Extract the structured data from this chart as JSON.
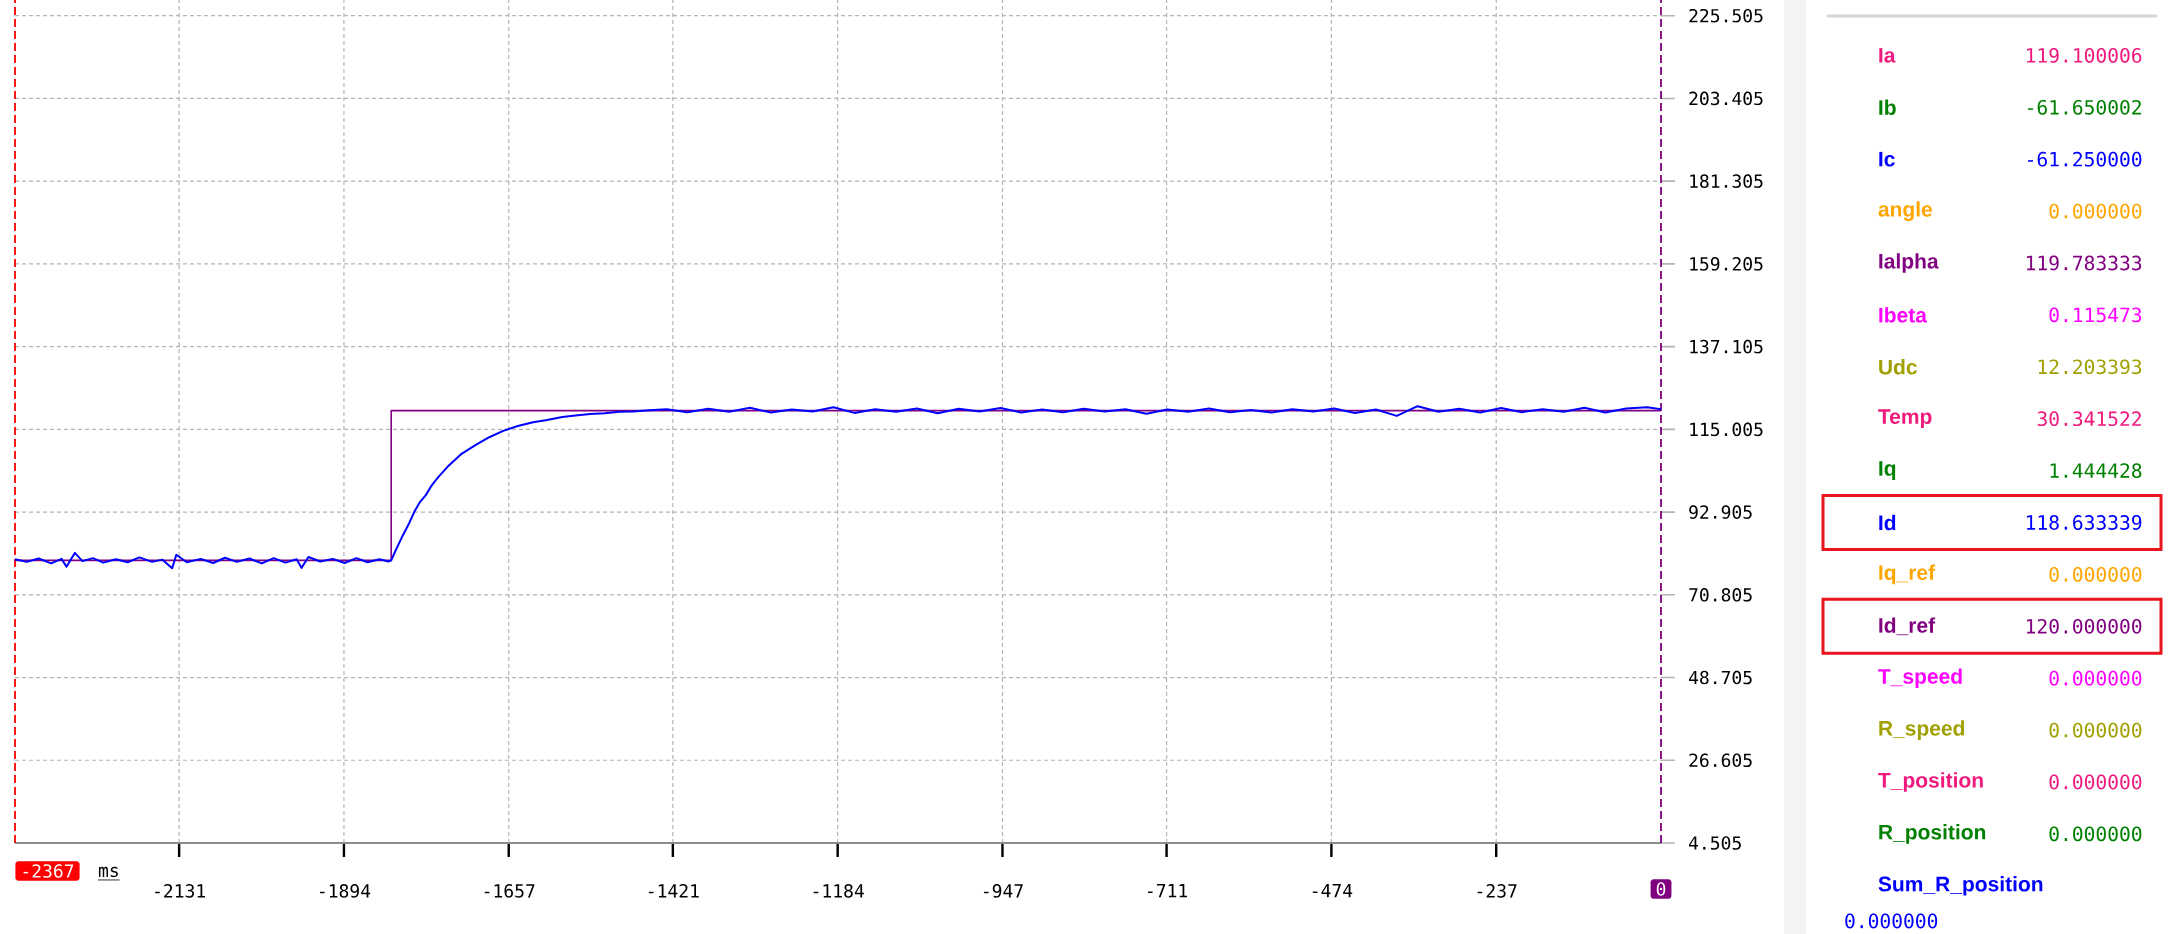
{
  "chart_data": {
    "type": "line",
    "xlabel": "ms",
    "xlim": [
      -2367,
      0
    ],
    "ylim": [
      4.505,
      229.7
    ],
    "xticks": [
      -2131,
      -1894,
      -1657,
      -1421,
      -1184,
      -947,
      -711,
      -474,
      -237
    ],
    "yticks": [
      4.505,
      26.605,
      48.705,
      70.805,
      92.905,
      115.005,
      137.105,
      159.205,
      181.305,
      203.405,
      225.505
    ],
    "grid": true,
    "legend": "right",
    "series": [
      {
        "name": "Id",
        "color": "#0000ff",
        "x": [
          -2367,
          -2350,
          -2333,
          -2315,
          -2300,
          -2293,
          -2281,
          -2270,
          -2255,
          -2240,
          -2222,
          -2205,
          -2188,
          -2170,
          -2155,
          -2141,
          -2135,
          -2120,
          -2100,
          -2082,
          -2065,
          -2048,
          -2030,
          -2012,
          -1995,
          -1978,
          -1962,
          -1955,
          -1945,
          -1928,
          -1910,
          -1893,
          -1876,
          -1860,
          -1843,
          -1830,
          -1826,
          -1820,
          -1809,
          -1800,
          -1793,
          -1785,
          -1776,
          -1768,
          -1759,
          -1745,
          -1726,
          -1705,
          -1685,
          -1665,
          -1644,
          -1622,
          -1602,
          -1580,
          -1561,
          -1540,
          -1519,
          -1498,
          -1478,
          -1455,
          -1430,
          -1400,
          -1370,
          -1340,
          -1310,
          -1280,
          -1250,
          -1220,
          -1190,
          -1160,
          -1130,
          -1100,
          -1070,
          -1040,
          -1010,
          -980,
          -950,
          -920,
          -890,
          -860,
          -830,
          -800,
          -770,
          -740,
          -710,
          -680,
          -650,
          -620,
          -590,
          -560,
          -530,
          -500,
          -470,
          -440,
          -410,
          -380,
          -350,
          -320,
          -290,
          -260,
          -230,
          -200,
          -170,
          -140,
          -110,
          -80,
          -50,
          -20,
          0
        ],
        "values": [
          80.3,
          79.6,
          80.5,
          79.2,
          80.4,
          78.3,
          82.0,
          79.8,
          80.6,
          79.4,
          80.3,
          79.5,
          80.8,
          79.6,
          80.2,
          77.9,
          81.5,
          79.5,
          80.4,
          79.3,
          80.7,
          79.6,
          80.5,
          79.2,
          80.6,
          79.4,
          80.3,
          78.0,
          80.9,
          79.7,
          80.4,
          79.3,
          80.6,
          79.5,
          80.3,
          79.7,
          80.0,
          82.5,
          86.8,
          90.0,
          92.9,
          95.5,
          97.5,
          100.0,
          102.1,
          105.0,
          108.3,
          110.8,
          112.9,
          114.6,
          115.9,
          116.9,
          117.5,
          118.3,
          118.7,
          119.1,
          119.3,
          119.7,
          119.8,
          120.1,
          120.4,
          119.6,
          120.5,
          119.7,
          120.8,
          119.5,
          120.3,
          119.8,
          120.9,
          119.4,
          120.4,
          119.7,
          120.6,
          119.3,
          120.5,
          119.8,
          120.7,
          119.5,
          120.3,
          119.6,
          120.5,
          119.8,
          120.4,
          119.2,
          120.3,
          119.7,
          120.6,
          119.6,
          120.2,
          119.5,
          120.4,
          119.8,
          120.6,
          119.4,
          120.3,
          118.6,
          121.2,
          119.7,
          120.5,
          119.5,
          120.7,
          119.6,
          120.4,
          119.7,
          120.8,
          119.5,
          120.6,
          120.9,
          120.4
        ]
      },
      {
        "name": "Id_ref",
        "color": "#800080",
        "x": [
          -2367,
          -1826,
          -1826,
          0
        ],
        "values": [
          80,
          80,
          120,
          120
        ]
      }
    ],
    "ref_lines": [
      {
        "axis": "x",
        "value": -2367,
        "label": "-2367",
        "color": "#ff0000",
        "line_style": "dashed"
      },
      {
        "axis": "x",
        "value": 0,
        "label": "0",
        "color": "#800080",
        "line_style": "dashed"
      }
    ],
    "annotations": [
      "Ia",
      "119.100006",
      "Ib",
      "-61.650002",
      "Ic",
      "-61.250000",
      "angle",
      "0.000000",
      "Ialpha",
      "119.783333",
      "Ibeta",
      "0.115473",
      "Udc",
      "12.203393",
      "Temp",
      "30.341522",
      "Iq",
      "1.444428",
      "118.633339",
      "Iq_ref",
      "0.000000",
      "120.000000",
      "T_speed",
      "0.000000",
      "R_speed",
      "0.000000",
      "T_position",
      "0.000000",
      "R_position",
      "0.000000",
      "Sum_R_position",
      "0.000000"
    ]
  }
}
